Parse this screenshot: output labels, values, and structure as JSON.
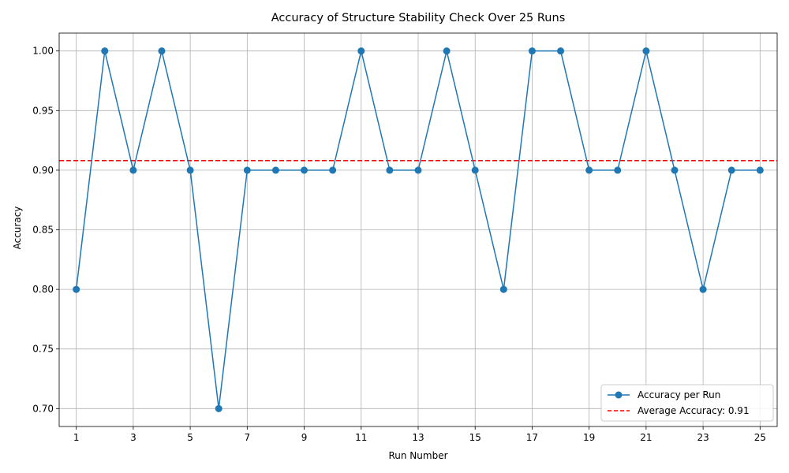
{
  "chart_data": {
    "type": "line",
    "title": "Accuracy of Structure Stability Check Over 25 Runs",
    "xlabel": "Run Number",
    "ylabel": "Accuracy",
    "x": [
      1,
      2,
      3,
      4,
      5,
      6,
      7,
      8,
      9,
      10,
      11,
      12,
      13,
      14,
      15,
      16,
      17,
      18,
      19,
      20,
      21,
      22,
      23,
      24,
      25
    ],
    "xticks": [
      "1",
      "3",
      "5",
      "7",
      "9",
      "11",
      "13",
      "15",
      "17",
      "19",
      "21",
      "23",
      "25"
    ],
    "yticks": [
      "0.70",
      "0.75",
      "0.80",
      "0.85",
      "0.90",
      "0.95",
      "1.00"
    ],
    "xlim": [
      0.4,
      25.6
    ],
    "ylim": [
      0.685,
      1.015
    ],
    "grid": true,
    "legend_position": "lower-right",
    "series": [
      {
        "name": "Accuracy per Run",
        "color": "#1f77b4",
        "marker": "circle",
        "values": [
          0.8,
          1.0,
          0.9,
          1.0,
          0.9,
          0.7,
          0.9,
          0.9,
          0.9,
          0.9,
          1.0,
          0.9,
          0.9,
          1.0,
          0.9,
          0.8,
          1.0,
          1.0,
          0.9,
          0.9,
          1.0,
          0.9,
          0.8,
          0.9,
          0.9
        ]
      }
    ],
    "reference_lines": [
      {
        "name": "Average Accuracy: 0.91",
        "value": 0.908,
        "color": "#ff0000",
        "style": "dashed"
      }
    ]
  }
}
